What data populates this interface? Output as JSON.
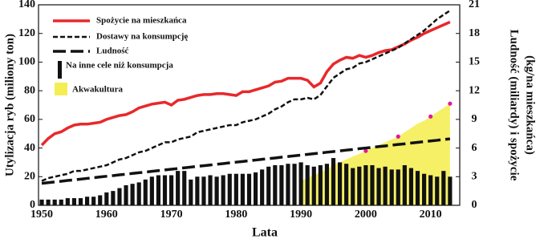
{
  "chart_data": {
    "type": "combo",
    "xlabel": "Lata",
    "ylabel": "Utylizacja ryb (miliony ton)",
    "y2label": [
      "Ludność (miliardy) i spożycie",
      "(kg/na mieszkańca)"
    ],
    "x": [
      1950,
      1951,
      1952,
      1953,
      1954,
      1955,
      1956,
      1957,
      1958,
      1959,
      1960,
      1961,
      1962,
      1963,
      1964,
      1965,
      1966,
      1967,
      1968,
      1969,
      1970,
      1971,
      1972,
      1973,
      1974,
      1975,
      1976,
      1977,
      1978,
      1979,
      1980,
      1981,
      1982,
      1983,
      1984,
      1985,
      1986,
      1987,
      1988,
      1989,
      1990,
      1991,
      1992,
      1993,
      1994,
      1995,
      1996,
      1997,
      1998,
      1999,
      2000,
      2001,
      2002,
      2003,
      2004,
      2005,
      2006,
      2007,
      2008,
      2009,
      2010,
      2011,
      2012,
      2013
    ],
    "xlim": [
      1949.5,
      2014.5
    ],
    "xticks": [
      1950,
      1960,
      1970,
      1980,
      1990,
      2000,
      2010
    ],
    "ylim": [
      0,
      140
    ],
    "yticks": [
      0,
      20,
      40,
      60,
      80,
      100,
      120,
      140
    ],
    "y2lim": [
      0,
      21
    ],
    "y2ticks": [
      0,
      3,
      6,
      9,
      12,
      15,
      18,
      21
    ],
    "series": [
      {
        "name": "Spożycie na  mieszkańca",
        "kind": "line",
        "dash": "solid",
        "axis": "y2",
        "color": "#e8282b",
        "values": [
          6.3,
          7.0,
          7.5,
          7.7,
          8.1,
          8.4,
          8.5,
          8.5,
          8.6,
          8.7,
          9.0,
          9.2,
          9.4,
          9.5,
          9.8,
          10.2,
          10.4,
          10.6,
          10.7,
          10.8,
          10.5,
          11.0,
          11.1,
          11.3,
          11.5,
          11.6,
          11.6,
          11.7,
          11.7,
          11.6,
          11.5,
          11.9,
          11.9,
          12.1,
          12.3,
          12.5,
          12.9,
          13.0,
          13.3,
          13.3,
          13.3,
          13.1,
          12.4,
          12.8,
          14.0,
          14.8,
          15.2,
          15.5,
          15.4,
          15.7,
          15.5,
          15.7,
          16.0,
          16.2,
          16.3,
          16.6,
          16.9,
          17.3,
          17.6,
          18.0,
          18.3,
          18.6,
          18.9,
          19.2
        ]
      },
      {
        "name": "Dostawy na konsumpcję",
        "kind": "line",
        "dash": "dashed",
        "axis": "y",
        "color": "#111111",
        "values": [
          17,
          19,
          20,
          21,
          22,
          24,
          24,
          25,
          26,
          27,
          28,
          30,
          32,
          33,
          35,
          37,
          38,
          40,
          42,
          44,
          44,
          46,
          47,
          48,
          51,
          52,
          53,
          54,
          55,
          56,
          56,
          58,
          59,
          60,
          62,
          64,
          67,
          69,
          72,
          74,
          74,
          75,
          74,
          77,
          83,
          89,
          92,
          95,
          96,
          99,
          100,
          102,
          104,
          106,
          108,
          110,
          113,
          116,
          119,
          122,
          126,
          130,
          133,
          136
        ]
      },
      {
        "name": "Ludność",
        "kind": "line",
        "dash": "longdash",
        "axis": "y2",
        "color": "#111111",
        "values": [
          2.3,
          2.37,
          2.45,
          2.52,
          2.6,
          2.67,
          2.74,
          2.82,
          2.89,
          2.97,
          3.04,
          3.11,
          3.19,
          3.26,
          3.34,
          3.41,
          3.48,
          3.56,
          3.63,
          3.71,
          3.78,
          3.85,
          3.93,
          4.0,
          4.08,
          4.15,
          4.22,
          4.3,
          4.37,
          4.45,
          4.52,
          4.59,
          4.67,
          4.74,
          4.82,
          4.89,
          4.96,
          5.04,
          5.11,
          5.19,
          5.26,
          5.33,
          5.41,
          5.48,
          5.56,
          5.63,
          5.7,
          5.78,
          5.85,
          5.93,
          6.0,
          6.07,
          6.15,
          6.22,
          6.3,
          6.37,
          6.44,
          6.52,
          6.59,
          6.67,
          6.74,
          6.81,
          6.89,
          6.96
        ]
      },
      {
        "name": "Na inne cele niż konsumpcja",
        "kind": "bar",
        "axis": "y",
        "color": "#111111",
        "values": [
          4,
          4,
          4,
          4,
          5,
          5,
          5,
          6,
          6,
          7,
          9,
          10,
          12,
          14,
          15,
          16,
          18,
          20,
          21,
          21,
          21,
          24,
          24,
          18,
          20,
          20,
          21,
          20,
          21,
          22,
          22,
          22,
          22,
          23,
          25,
          27,
          28,
          28,
          29,
          29,
          30,
          28,
          27,
          28,
          29,
          33,
          30,
          29,
          26,
          27,
          28,
          28,
          26,
          27,
          25,
          25,
          28,
          26,
          24,
          22,
          21,
          20,
          24,
          20
        ]
      },
      {
        "name": "Akwakultura",
        "kind": "area",
        "axis": "y",
        "color": "#f4ee55",
        "values": [
          null,
          null,
          null,
          null,
          null,
          null,
          null,
          null,
          null,
          null,
          null,
          null,
          null,
          null,
          null,
          null,
          null,
          null,
          null,
          null,
          null,
          null,
          null,
          null,
          null,
          null,
          null,
          null,
          null,
          null,
          null,
          null,
          null,
          null,
          null,
          null,
          null,
          null,
          null,
          null,
          17,
          19,
          21,
          23,
          25,
          28,
          30,
          32,
          34,
          36,
          38,
          40,
          42,
          44,
          46,
          48,
          51,
          54,
          57,
          59,
          62,
          65,
          68,
          71
        ]
      }
    ]
  }
}
